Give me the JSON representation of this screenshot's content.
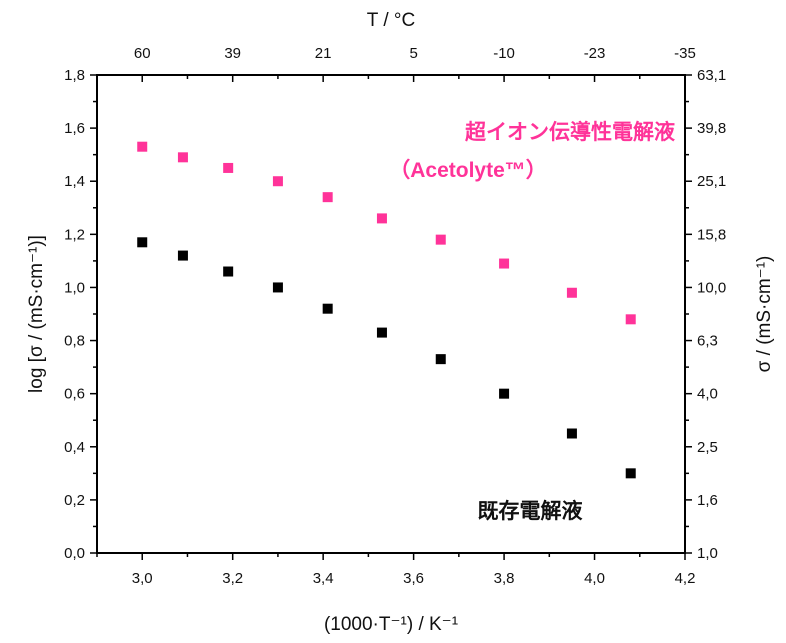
{
  "chart_data": {
    "type": "scatter",
    "xlabel": "(1000·T⁻¹) / K⁻¹",
    "ylabel": "log [σ / (mS·cm⁻¹)]",
    "y2label": "σ / (mS·cm⁻¹)",
    "x2label": "T / °C",
    "xlim": [
      2.9,
      4.2
    ],
    "ylim": [
      0.0,
      1.8
    ],
    "x_ticks": [
      "3,0",
      "3,2",
      "3,4",
      "3,6",
      "3,8",
      "4,0",
      "4,2"
    ],
    "x_tick_values": [
      3.0,
      3.2,
      3.4,
      3.6,
      3.8,
      4.0,
      4.2
    ],
    "y_ticks": [
      "0,0",
      "0,2",
      "0,4",
      "0,6",
      "0,8",
      "1,0",
      "1,2",
      "1,4",
      "1,6",
      "1,8"
    ],
    "y_tick_values": [
      0,
      0.2,
      0.4,
      0.6,
      0.8,
      1.0,
      1.2,
      1.4,
      1.6,
      1.8
    ],
    "y2_ticks": [
      "1,0",
      "1,6",
      "2,5",
      "4,0",
      "6,3",
      "10,0",
      "15,8",
      "25,1",
      "39,8",
      "63,1"
    ],
    "x2_ticks": [
      "60",
      "39",
      "21",
      "5",
      "-10",
      "-23",
      "-35"
    ],
    "grid": false,
    "series": [
      {
        "name": "超イオン伝導性電解液",
        "name_line2": "（Acetolyte™）",
        "color": "#ff3399",
        "x": [
          3.0,
          3.09,
          3.19,
          3.3,
          3.41,
          3.53,
          3.66,
          3.8,
          3.95,
          4.08
        ],
        "y": [
          1.53,
          1.49,
          1.45,
          1.4,
          1.34,
          1.26,
          1.18,
          1.09,
          0.98,
          0.88
        ]
      },
      {
        "name": "既存電解液",
        "color": "#000000",
        "x": [
          3.0,
          3.09,
          3.19,
          3.3,
          3.41,
          3.53,
          3.66,
          3.8,
          3.95,
          4.08
        ],
        "y": [
          1.17,
          1.12,
          1.06,
          1.0,
          0.92,
          0.83,
          0.73,
          0.6,
          0.45,
          0.3
        ]
      }
    ]
  }
}
